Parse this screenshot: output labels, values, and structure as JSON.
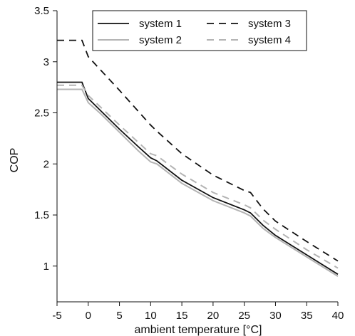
{
  "chart_data": {
    "type": "line",
    "xlabel": "ambient temperature [°C]",
    "ylabel": "COP",
    "xlim": [
      -5,
      40
    ],
    "ylim": [
      0.65,
      3.5
    ],
    "x_ticks": [
      -5,
      0,
      5,
      10,
      15,
      20,
      25,
      30,
      35,
      40
    ],
    "x_tick_labels": [
      "-5",
      "0",
      "5",
      "10",
      "15",
      "20",
      "25",
      "30",
      "35",
      "40"
    ],
    "y_ticks": [
      1,
      1.5,
      2,
      2.5,
      3,
      3.5
    ],
    "y_tick_labels": [
      "1",
      "1.5",
      "2",
      "2.5",
      "3",
      "3.5"
    ],
    "grid": false,
    "legend_position": "top-right",
    "series": [
      {
        "name": "system 1",
        "color": "#111111",
        "dash": "solid",
        "points": [
          [
            -5,
            2.8
          ],
          [
            -1,
            2.8
          ],
          [
            0,
            2.64
          ],
          [
            2,
            2.52
          ],
          [
            5,
            2.34
          ],
          [
            8,
            2.17
          ],
          [
            10,
            2.06
          ],
          [
            11,
            2.03
          ],
          [
            15,
            1.84
          ],
          [
            20,
            1.67
          ],
          [
            25,
            1.55
          ],
          [
            26,
            1.52
          ],
          [
            28,
            1.4
          ],
          [
            30,
            1.3
          ],
          [
            35,
            1.11
          ],
          [
            40,
            0.92
          ]
        ]
      },
      {
        "name": "system 2",
        "color": "#b4b4b4",
        "dash": "solid",
        "points": [
          [
            -5,
            2.73
          ],
          [
            -1,
            2.73
          ],
          [
            0,
            2.6
          ],
          [
            2,
            2.49
          ],
          [
            5,
            2.31
          ],
          [
            8,
            2.13
          ],
          [
            10,
            2.02
          ],
          [
            11,
            2.0
          ],
          [
            15,
            1.81
          ],
          [
            20,
            1.64
          ],
          [
            25,
            1.52
          ],
          [
            26,
            1.49
          ],
          [
            28,
            1.37
          ],
          [
            30,
            1.28
          ],
          [
            35,
            1.09
          ],
          [
            40,
            0.9
          ]
        ]
      },
      {
        "name": "system 3",
        "color": "#111111",
        "dash": "dashed",
        "points": [
          [
            -5,
            3.21
          ],
          [
            -1,
            3.21
          ],
          [
            0,
            3.05
          ],
          [
            5,
            2.72
          ],
          [
            10,
            2.38
          ],
          [
            11,
            2.32
          ],
          [
            15,
            2.1
          ],
          [
            20,
            1.89
          ],
          [
            25,
            1.74
          ],
          [
            26,
            1.72
          ],
          [
            28,
            1.56
          ],
          [
            30,
            1.44
          ],
          [
            35,
            1.24
          ],
          [
            40,
            1.05
          ]
        ]
      },
      {
        "name": "system 4",
        "color": "#b4b4b4",
        "dash": "dashed",
        "points": [
          [
            -5,
            2.77
          ],
          [
            -1,
            2.77
          ],
          [
            0,
            2.67
          ],
          [
            5,
            2.38
          ],
          [
            10,
            2.1
          ],
          [
            11,
            2.08
          ],
          [
            15,
            1.9
          ],
          [
            20,
            1.72
          ],
          [
            25,
            1.6
          ],
          [
            26,
            1.57
          ],
          [
            28,
            1.45
          ],
          [
            30,
            1.36
          ],
          [
            35,
            1.16
          ],
          [
            40,
            0.98
          ]
        ]
      }
    ]
  }
}
